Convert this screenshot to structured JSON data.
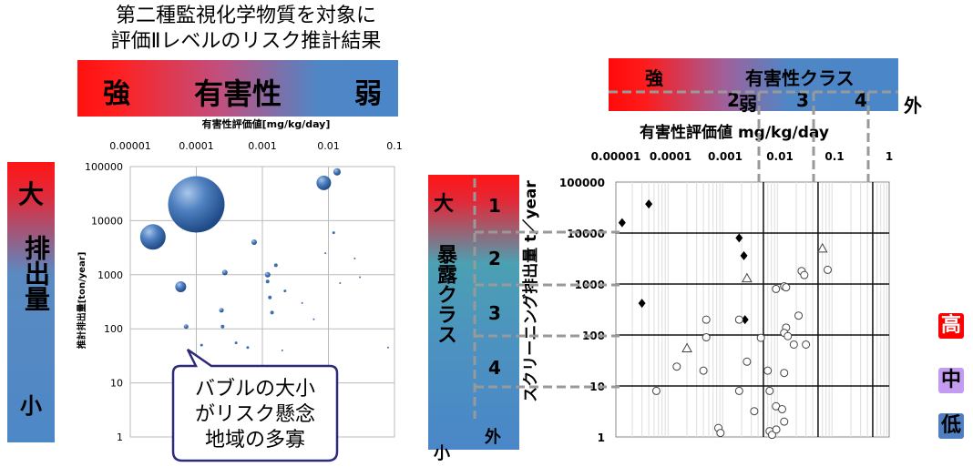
{
  "left_panel": {
    "title_line1": "第二種監視化学物質を対象に",
    "title_line2": "評価Ⅱレベルのリスク推計結果",
    "hazard_bar": {
      "strong": "強",
      "label": "有害性",
      "weak": "弱"
    },
    "x_axis_label": "有害性評価値[mg/kg/day]",
    "y_axis_label": "推計排出量[ton/year]",
    "emission_bar": {
      "large": "大",
      "label": "排出量",
      "small": "小"
    },
    "callout": [
      "バブルの大小",
      "がリスク懸念",
      "地域の多寡"
    ]
  },
  "right_panel": {
    "hazard_bar": {
      "strong": "強",
      "label": "有害性クラス"
    },
    "hazard_classes": [
      "2",
      "3",
      "4"
    ],
    "hazard_weak": "弱",
    "hazard_outside": "外",
    "x_axis_label": "有害性評価値 mg/kg/day",
    "y_axis_label": "スクリーニング排出量 t／year",
    "exposure_bar": {
      "large": "大",
      "label": "暴露クラス",
      "small": "小"
    },
    "exposure_classes": [
      "1",
      "2",
      "3",
      "4"
    ],
    "exposure_outside": "外"
  },
  "risk_legend": {
    "high": "高",
    "mid": "中",
    "low": "低"
  },
  "colors": {
    "high": "#ff0000",
    "mid": "#c39bf0",
    "low": "#4f7fc0",
    "bubble": "#3d6fb0"
  },
  "chart_data": [
    {
      "type": "scatter",
      "title": "",
      "xlabel": "有害性評価値[mg/kg/day]",
      "ylabel": "推計排出量[ton/year]",
      "x_scale": "log",
      "y_scale": "log",
      "xlim": [
        1e-05,
        0.1
      ],
      "ylim": [
        1,
        100000
      ],
      "x_ticks": [
        "0.00001",
        "0.0001",
        "0.001",
        "0.01",
        "0.1"
      ],
      "y_ticks": [
        "1",
        "10",
        "100",
        "1000",
        "10000",
        "100000"
      ],
      "grid": true,
      "points": [
        {
          "x": 0.0001,
          "y": 20000,
          "size": 62
        },
        {
          "x": 2.2e-05,
          "y": 5000,
          "size": 28
        },
        {
          "x": 0.0085,
          "y": 50000,
          "size": 16
        },
        {
          "x": 0.0135,
          "y": 80000,
          "size": 8
        },
        {
          "x": 5.8e-05,
          "y": 600,
          "size": 12
        },
        {
          "x": 0.00027,
          "y": 1100,
          "size": 6
        },
        {
          "x": 0.00075,
          "y": 4000,
          "size": 6
        },
        {
          "x": 0.0012,
          "y": 1000,
          "size": 6
        },
        {
          "x": 0.0016,
          "y": 1500,
          "size": 4
        },
        {
          "x": 0.0013,
          "y": 380,
          "size": 4
        },
        {
          "x": 0.00024,
          "y": 220,
          "size": 5
        },
        {
          "x": 7e-05,
          "y": 110,
          "size": 5
        },
        {
          "x": 0.00025,
          "y": 110,
          "size": 4
        },
        {
          "x": 0.0014,
          "y": 200,
          "size": 4
        },
        {
          "x": 0.00012,
          "y": 50,
          "size": 3
        },
        {
          "x": 0.0006,
          "y": 45,
          "size": 3
        },
        {
          "x": 0.0012,
          "y": 750,
          "size": 4
        },
        {
          "x": 0.0004,
          "y": 55,
          "size": 3
        },
        {
          "x": 0.0022,
          "y": 500,
          "size": 3
        },
        {
          "x": 0.006,
          "y": 150,
          "size": 2
        },
        {
          "x": 0.012,
          "y": 6000,
          "size": 3
        },
        {
          "x": 0.03,
          "y": 900,
          "size": 2
        },
        {
          "x": 0.015,
          "y": 700,
          "size": 2
        },
        {
          "x": 0.004,
          "y": 300,
          "size": 2
        },
        {
          "x": 0.009,
          "y": 2500,
          "size": 2
        },
        {
          "x": 0.025,
          "y": 2000,
          "size": 2
        },
        {
          "x": 0.002,
          "y": 40,
          "size": 2
        },
        {
          "x": 0.08,
          "y": 45,
          "size": 2
        }
      ]
    },
    {
      "type": "scatter",
      "title": "",
      "xlabel": "有害性評価値 mg/kg/day",
      "ylabel": "スクリーニング排出量 t／year",
      "x_scale": "log",
      "y_scale": "log",
      "xlim": [
        1e-05,
        1
      ],
      "ylim": [
        1,
        100000
      ],
      "x_ticks": [
        "0.00001",
        "0.0001",
        "0.001",
        "0.01",
        "0.1",
        "1"
      ],
      "y_ticks": [
        "1",
        "10",
        "100",
        "1000",
        "10000",
        "100000"
      ],
      "grid": true,
      "risk_regions": [
        {
          "level": "high",
          "x": [
            1e-05,
            0.005
          ],
          "y": [
            1000,
            100000
          ]
        },
        {
          "level": "high",
          "x": [
            0.005,
            0.05
          ],
          "y": [
            1000,
            100000
          ]
        },
        {
          "level": "high",
          "x": [
            0.05,
            0.5
          ],
          "y": [
            10000,
            100000
          ]
        },
        {
          "level": "mid",
          "x": [
            0.05,
            0.5
          ],
          "y": [
            1000,
            10000
          ]
        },
        {
          "level": "high",
          "x": [
            1e-05,
            0.005
          ],
          "y": [
            100,
            1000
          ]
        },
        {
          "level": "mid",
          "x": [
            0.005,
            0.05
          ],
          "y": [
            100,
            1000
          ]
        },
        {
          "level": "low",
          "x": [
            0.05,
            0.5
          ],
          "y": [
            100,
            1000
          ]
        },
        {
          "level": "mid",
          "x": [
            1e-05,
            0.005
          ],
          "y": [
            10,
            100
          ]
        },
        {
          "level": "low",
          "x": [
            0.005,
            0.05
          ],
          "y": [
            10,
            100
          ]
        },
        {
          "level": "low",
          "x": [
            0.05,
            0.5
          ],
          "y": [
            10,
            100
          ]
        }
      ],
      "series": [
        {
          "marker": "diamond",
          "points": [
            [
              1.3e-05,
              16000
            ],
            [
              4e-05,
              37000
            ],
            [
              0.0018,
              8000
            ],
            [
              0.0022,
              3600
            ],
            [
              3e-05,
              420
            ],
            [
              0.0023,
              200
            ]
          ]
        },
        {
          "marker": "triangle",
          "points": [
            [
              0.0025,
              1300
            ],
            [
              0.06,
              5000
            ],
            [
              0.0002,
              55
            ]
          ]
        },
        {
          "marker": "circle",
          "points": [
            [
              0.00045,
              200
            ],
            [
              0.0018,
              200
            ],
            [
              0.0085,
              800
            ],
            [
              0.012,
              900
            ],
            [
              0.013,
              860
            ],
            [
              0.022,
              240
            ],
            [
              0.025,
              1800
            ],
            [
              0.028,
              1500
            ],
            [
              0.075,
              1900
            ],
            [
              0.013,
              140
            ],
            [
              0.012,
              110
            ],
            [
              0.014,
              95
            ],
            [
              0.018,
              65
            ],
            [
              0.03,
              65
            ],
            [
              0.012,
              18
            ],
            [
              0.0045,
              88
            ],
            [
              0.00045,
              90
            ],
            [
              0.00013,
              24
            ],
            [
              0.0004,
              20
            ],
            [
              0.0025,
              30
            ],
            [
              0.006,
              20
            ],
            [
              5.5e-05,
              8
            ],
            [
              0.0018,
              8
            ],
            [
              0.0065,
              8
            ],
            [
              0.0034,
              3.2
            ],
            [
              0.0085,
              4
            ],
            [
              0.011,
              3.5
            ],
            [
              0.012,
              2
            ],
            [
              0.0065,
              1.3
            ],
            [
              0.0072,
              1.1
            ],
            [
              0.00075,
              1.5
            ],
            [
              0.00082,
              1.2
            ],
            [
              0.0086,
              1.4
            ]
          ]
        }
      ]
    }
  ]
}
